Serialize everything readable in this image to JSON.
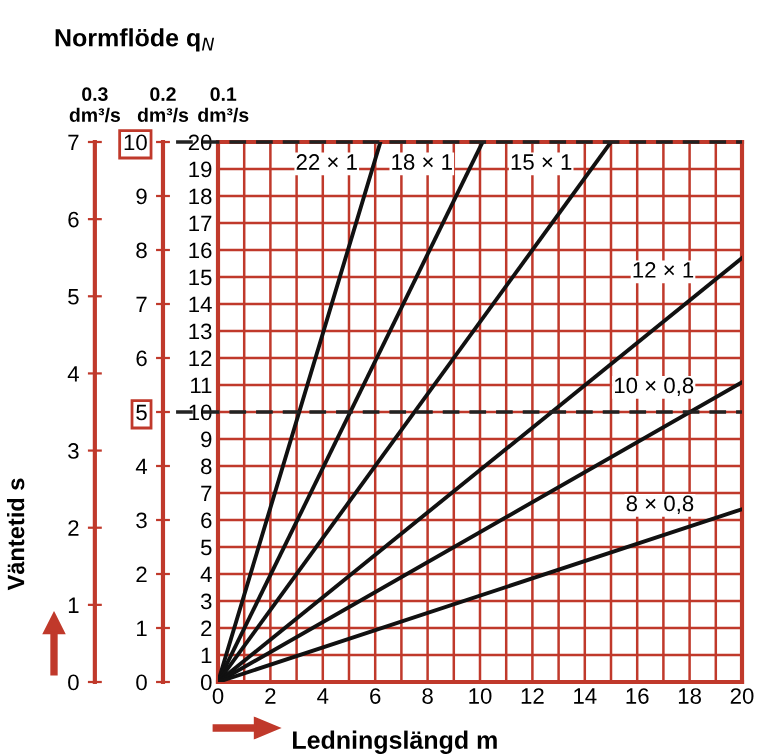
{
  "chart_data": {
    "type": "line",
    "title": "Normflöde q$_{N}$",
    "xlabel": "Ledningslängd m",
    "ylabel": "0.1\ndm³/s",
    "y2label": "0.2\ndm³/s",
    "y3label": "0.3\ndm³/s",
    "annotations": [
      "Väntetid s"
    ],
    "xlim": [
      0,
      20
    ],
    "xticks": [
      0,
      {
        "value": 1,
        "label": null
      },
      2,
      {
        "value": 3,
        "label": null
      },
      4,
      {
        "value": 5,
        "label": null
      },
      6,
      {
        "value": 7,
        "label": null
      },
      8,
      {
        "value": 9,
        "label": null
      },
      10,
      {
        "value": 11,
        "label": null
      },
      12,
      {
        "value": 13,
        "label": null
      },
      14,
      {
        "value": 15,
        "label": null
      },
      16,
      {
        "value": 17,
        "label": null
      },
      18,
      {
        "value": 19,
        "label": null
      },
      20
    ],
    "ylim": [
      0,
      20
    ],
    "yticks": [
      0,
      1,
      2,
      3,
      4,
      5,
      6,
      7,
      8,
      9,
      10,
      11,
      12,
      13,
      14,
      15,
      16,
      17,
      18,
      19,
      20
    ],
    "y2lim": [
      0,
      10
    ],
    "y2ticks": [
      0,
      1,
      2,
      3,
      4,
      5,
      6,
      7,
      8,
      9,
      10
    ],
    "y3lim": [
      0,
      7
    ],
    "y3ticks": [
      0,
      1,
      2,
      3,
      4,
      5,
      6,
      7
    ],
    "grid": true,
    "marker": "none",
    "line_style": "solid",
    "ref_lines": [
      {
        "axis": "y2",
        "value": 10,
        "label": null,
        "line_style": "dashed",
        "color": "#222222"
      },
      {
        "axis": "y2",
        "value": 5,
        "label": null,
        "line_style": "dashed",
        "color": "#222222"
      }
    ],
    "series": [
      {
        "name": "22 × 1",
        "color": "#111111",
        "x": [
          0,
          6.2
        ],
        "values": [
          0,
          20
        ]
      },
      {
        "name": "18 × 1",
        "color": "#111111",
        "x": [
          0,
          10.1
        ],
        "values": [
          0,
          20
        ]
      },
      {
        "name": "15 × 1",
        "color": "#111111",
        "x": [
          0,
          15.0
        ],
        "values": [
          0,
          20
        ]
      },
      {
        "name": "12 × 1",
        "color": "#111111",
        "x": [
          0,
          20
        ],
        "values": [
          0,
          15.7
        ]
      },
      {
        "name": "10 × 0,8",
        "color": "#111111",
        "x": [
          0,
          20
        ],
        "values": [
          0,
          11.1
        ]
      },
      {
        "name": "8 × 0,8",
        "color": "#111111",
        "x": [
          0,
          20
        ],
        "values": [
          0,
          6.4
        ]
      }
    ]
  }
}
